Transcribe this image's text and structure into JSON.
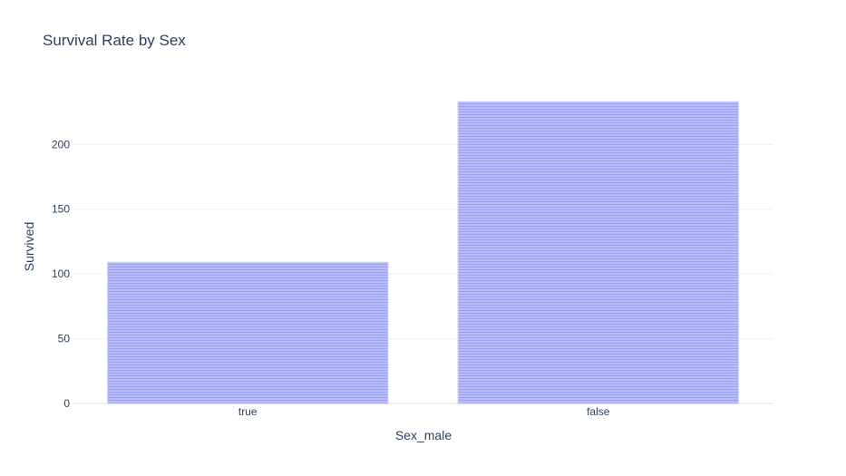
{
  "chart_data": {
    "type": "bar",
    "title": "Survival Rate by Sex",
    "xlabel": "Sex_male",
    "ylabel": "Survived",
    "categories": [
      "true",
      "false"
    ],
    "values": [
      109,
      233
    ],
    "ylim": [
      0,
      245
    ],
    "yticks": [
      0,
      50,
      100,
      150,
      200
    ],
    "grid": true,
    "legend": "none",
    "colors": {
      "bar_fill": "#b8bdf8",
      "bar_stripe": "#8c93f2",
      "text": "#2a3f5f",
      "grid": "#ebf0f8"
    }
  }
}
